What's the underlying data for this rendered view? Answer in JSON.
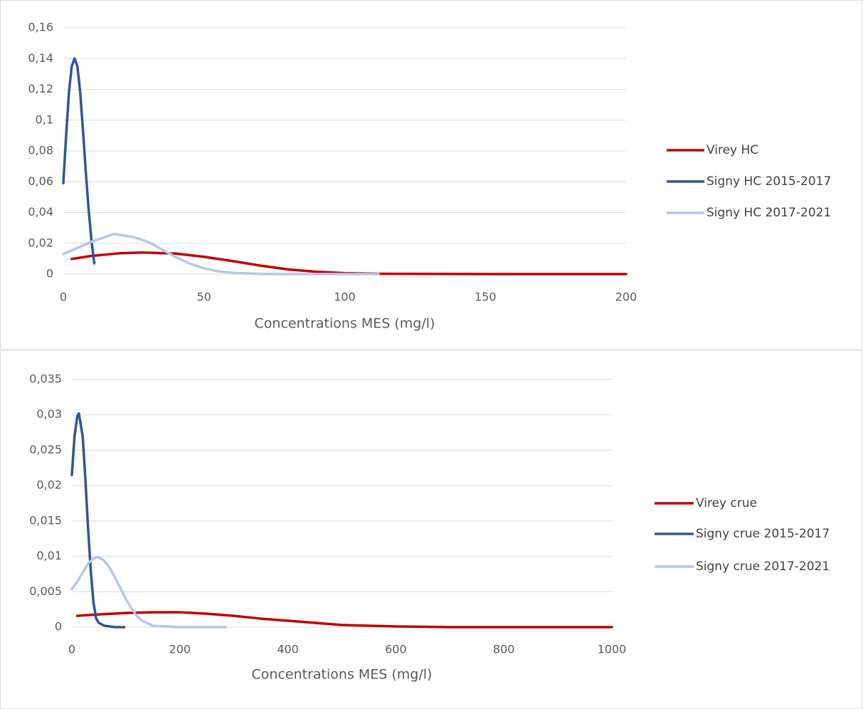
{
  "chart_data": [
    {
      "type": "line",
      "x_label": "Concentrations MES (mg/l)",
      "xlim": [
        0,
        200
      ],
      "xticks": [
        0,
        50,
        100,
        150,
        200
      ],
      "ylim": [
        0,
        0.16
      ],
      "yticks": [
        0,
        {
          "value": 0.02,
          "label": "0,02"
        },
        {
          "value": 0.04,
          "label": "0,04"
        },
        {
          "value": 0.06,
          "label": "0,06"
        },
        {
          "value": 0.08,
          "label": "0,08"
        },
        {
          "value": 0.1,
          "label": "0,1"
        },
        {
          "value": 0.12,
          "label": "0,12"
        },
        {
          "value": 0.14,
          "label": "0,14"
        },
        {
          "value": 0.16,
          "label": "0,16"
        }
      ],
      "grid": true,
      "series": [
        {
          "name": "Virey HC",
          "color": "#c00000",
          "x": [
            3,
            10,
            20,
            28,
            40,
            50,
            60,
            70,
            80,
            90,
            100,
            112,
            125,
            150,
            175,
            200
          ],
          "values": [
            0.0098,
            0.0118,
            0.0135,
            0.014,
            0.0133,
            0.0112,
            0.0085,
            0.0055,
            0.003,
            0.0015,
            0.0006,
            0.0002,
            0.0001,
            0,
            0,
            0
          ]
        },
        {
          "name": "Signy HC 2015-2017",
          "color": "#2f5597",
          "x": [
            0,
            1,
            2,
            3,
            4,
            5,
            6,
            7,
            8,
            9,
            10,
            11
          ],
          "values": [
            0.059,
            0.09,
            0.118,
            0.135,
            0.14,
            0.135,
            0.118,
            0.093,
            0.066,
            0.042,
            0.022,
            0.007
          ]
        },
        {
          "name": "Signy HC 2017-2021",
          "color": "#b4c7e7",
          "x": [
            0,
            5,
            10,
            18,
            25,
            30,
            35,
            40,
            45,
            50,
            55,
            60,
            70,
            80,
            90,
            100,
            112
          ],
          "values": [
            0.013,
            0.017,
            0.021,
            0.026,
            0.024,
            0.021,
            0.016,
            0.011,
            0.0068,
            0.0037,
            0.0018,
            0.0008,
            0.0001,
            0,
            0,
            0,
            0
          ]
        }
      ]
    },
    {
      "type": "line",
      "x_label": "Concentrations MES (mg/l)",
      "xlim": [
        0,
        1000
      ],
      "xticks": [
        0,
        200,
        400,
        600,
        800,
        1000
      ],
      "ylim": [
        0,
        0.035
      ],
      "yticks": [
        0,
        {
          "value": 0.005,
          "label": "0,005"
        },
        {
          "value": 0.01,
          "label": "0,01"
        },
        {
          "value": 0.015,
          "label": "0,015"
        },
        {
          "value": 0.02,
          "label": "0,02"
        },
        {
          "value": 0.025,
          "label": "0,025"
        },
        {
          "value": 0.03,
          "label": "0,03"
        },
        {
          "value": 0.035,
          "label": "0,035"
        }
      ],
      "grid": true,
      "series": [
        {
          "name": "Virey crue",
          "color": "#c00000",
          "x": [
            10,
            50,
            100,
            150,
            200,
            250,
            300,
            350,
            400,
            450,
            500,
            550,
            600,
            700,
            800,
            900,
            1000
          ],
          "values": [
            0.0016,
            0.0018,
            0.002,
            0.0021,
            0.0021,
            0.0019,
            0.0016,
            0.0012,
            0.0009,
            0.0006,
            0.0003,
            0.0002,
            0.0001,
            0,
            0,
            0,
            0
          ]
        },
        {
          "name": "Signy crue 2015-2017",
          "color": "#2f5597",
          "x": [
            0,
            5,
            10,
            13,
            20,
            25,
            30,
            35,
            40,
            45,
            50,
            60,
            70,
            80,
            97
          ],
          "values": [
            0.0215,
            0.027,
            0.0298,
            0.0302,
            0.027,
            0.021,
            0.014,
            0.008,
            0.0035,
            0.0012,
            0.0006,
            0.0002,
            0.0001,
            0,
            0
          ]
        },
        {
          "name": "Signy crue 2017-2021",
          "color": "#b4c7e7",
          "x": [
            0,
            10,
            20,
            30,
            40,
            48,
            60,
            70,
            80,
            90,
            100,
            110,
            120,
            130,
            150,
            200,
            250,
            285
          ],
          "values": [
            0.0054,
            0.0064,
            0.0077,
            0.009,
            0.0097,
            0.0099,
            0.0094,
            0.0084,
            0.007,
            0.0055,
            0.004,
            0.0027,
            0.0016,
            0.0009,
            0.0002,
            0,
            0,
            0
          ]
        }
      ]
    }
  ]
}
